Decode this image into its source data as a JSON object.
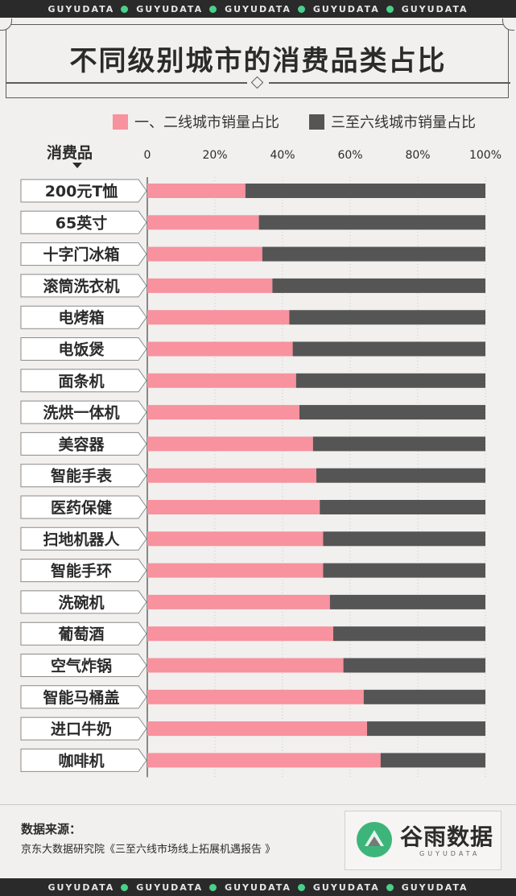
{
  "banner": {
    "text": "GUYUDATA",
    "repeat": 5
  },
  "title": "不同级别城市的消费品类占比",
  "legend": {
    "series1": "一、二线城市销量占比",
    "series2": "三至六线城市销量占比"
  },
  "axis": {
    "category_title": "消费品"
  },
  "colors": {
    "series1": "#f7929e",
    "series2": "#555555",
    "accent": "#4ad08a"
  },
  "chart_data": {
    "type": "bar",
    "orientation": "horizontal",
    "stacked": true,
    "categories": [
      "200元T恤",
      "65英寸",
      "十字门冰箱",
      "滚筒洗衣机",
      "电烤箱",
      "电饭煲",
      "面条机",
      "洗烘一体机",
      "美容器",
      "智能手表",
      "医药保健",
      "扫地机器人",
      "智能手环",
      "洗碗机",
      "葡萄酒",
      "空气炸锅",
      "智能马桶盖",
      "进口牛奶",
      "咖啡机"
    ],
    "series": [
      {
        "name": "一、二线城市销量占比",
        "values": [
          29,
          33,
          34,
          37,
          42,
          43,
          44,
          45,
          49,
          50,
          51,
          52,
          52,
          54,
          55,
          58,
          64,
          65,
          69
        ]
      },
      {
        "name": "三至六线城市销量占比",
        "values": [
          71,
          67,
          66,
          63,
          58,
          57,
          56,
          55,
          51,
          50,
          49,
          48,
          48,
          46,
          45,
          42,
          36,
          35,
          31
        ]
      }
    ],
    "xlim": [
      0,
      100
    ],
    "xticks": [
      "0",
      "20%",
      "40%",
      "60%",
      "80%",
      "100%"
    ],
    "xtick_values": [
      0,
      20,
      40,
      60,
      80,
      100
    ],
    "grid": true
  },
  "footer": {
    "source_title": "数据来源：",
    "source_text": "京东大数据研究院《三至六线市场线上拓展机遇报告 》",
    "logo_name": "谷雨数据",
    "logo_sub": "GUYUDATA"
  }
}
